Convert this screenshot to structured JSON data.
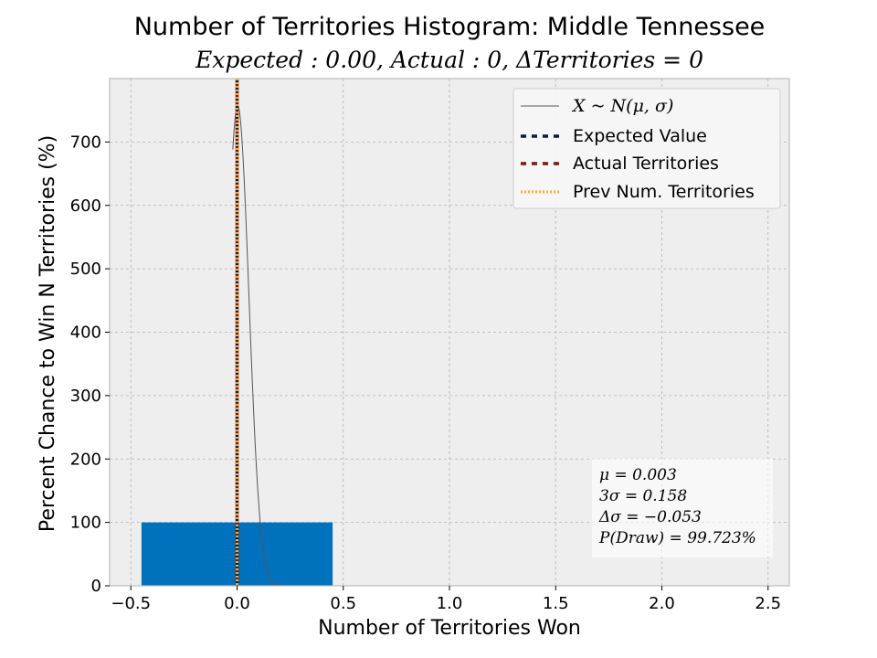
{
  "chart_data": {
    "type": "bar",
    "title": "Number of Territories Histogram: Middle Tennessee",
    "subtitle": "Expected : 0.00, Actual : 0, ΔTerritories = 0",
    "xlabel": "Number of Territories Won",
    "ylabel": "Percent Chance to Win N Territories (%)",
    "xlim": [
      -0.6,
      2.6
    ],
    "ylim": [
      0,
      800
    ],
    "xticks": [
      -0.5,
      0.0,
      0.5,
      1.0,
      1.5,
      2.0,
      2.5
    ],
    "xtick_labels": [
      "−0.5",
      "0.0",
      "0.5",
      "1.0",
      "1.5",
      "2.0",
      "2.5"
    ],
    "yticks": [
      0,
      100,
      200,
      300,
      400,
      500,
      600,
      700
    ],
    "ytick_labels": [
      "0",
      "100",
      "200",
      "300",
      "400",
      "500",
      "600",
      "700"
    ],
    "grid": true,
    "legend_position": "top-right",
    "bars": [
      {
        "x": 0,
        "width": 0.9,
        "value": 100
      }
    ],
    "normal_curve": {
      "mu": 0.003,
      "sigma": 0.0527,
      "peak": 757
    },
    "vlines": {
      "expected": 0.0,
      "actual": 0,
      "previous": 0
    },
    "legend": [
      {
        "label": "X ~ N(μ, σ)",
        "style": "thin-solid",
        "color": "#555555"
      },
      {
        "label": "Expected Value",
        "style": "dashed",
        "color": "#0d1a40"
      },
      {
        "label": "Actual Territories",
        "style": "dashed",
        "color": "#7a1a0a"
      },
      {
        "label": "Prev Num. Territories",
        "style": "dotted",
        "color": "#fbac2b"
      }
    ],
    "stats": [
      "μ = 0.003",
      "3σ = 0.158",
      "Δσ = −0.053",
      "P(Draw) = 99.723%"
    ],
    "colors": {
      "bar": "#0072bd",
      "plot_bg": "#eeeeee",
      "grid": "#b0b0b0",
      "curve": "#555555",
      "expected": "#0d1a40",
      "actual": "#7a1a0a",
      "previous": "#fbac2b"
    }
  }
}
